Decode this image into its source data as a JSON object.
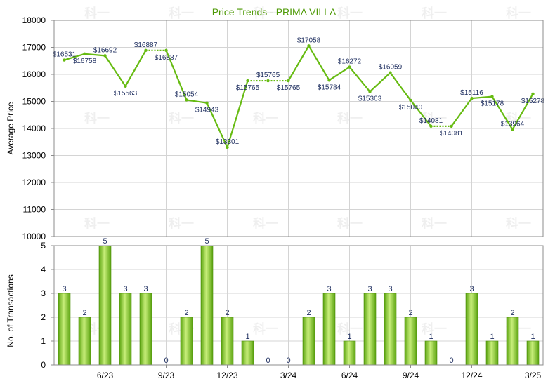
{
  "chart_data": [
    {
      "type": "line",
      "title": "Price Trends - PRIMA VILLA",
      "ylabel": "Average Price",
      "ylim": [
        10000,
        18000
      ],
      "yticks": [
        10000,
        11000,
        12000,
        13000,
        14000,
        15000,
        16000,
        17000,
        18000
      ],
      "grid": true,
      "color": "#66bb11",
      "values": [
        16531,
        16758,
        16692,
        15563,
        16887,
        16887,
        15054,
        14943,
        13301,
        15765,
        15765,
        15765,
        17058,
        15784,
        16272,
        15363,
        16059,
        15040,
        14081,
        14081,
        15116,
        15178,
        13964,
        15278
      ],
      "labels": [
        "$16531",
        "$16758",
        "$16692",
        "$15563",
        "$16887",
        "$16887",
        "$15054",
        "$14943",
        "$13301",
        "$15765",
        "$15765",
        "$15765",
        "$17058",
        "$15784",
        "$16272",
        "$15363",
        "$16059",
        "$15040",
        "$14081",
        "$14081",
        "$15116",
        "$15178",
        "$13964",
        "$15278"
      ],
      "carried_forward": [
        false,
        false,
        false,
        false,
        false,
        true,
        false,
        false,
        false,
        false,
        true,
        true,
        false,
        false,
        false,
        false,
        false,
        false,
        false,
        true,
        false,
        false,
        false,
        false
      ]
    },
    {
      "type": "bar",
      "ylabel": "No. of Transactions",
      "ylim": [
        0,
        5
      ],
      "yticks": [
        0,
        1,
        2,
        3,
        4,
        5
      ],
      "grid": true,
      "color": "#66bb11",
      "values": [
        3,
        2,
        5,
        3,
        3,
        0,
        2,
        5,
        2,
        1,
        0,
        0,
        2,
        3,
        1,
        3,
        3,
        2,
        1,
        0,
        3,
        1,
        2,
        1
      ]
    }
  ],
  "x_tick_labels": [
    "6/23",
    "9/23",
    "12/23",
    "3/24",
    "6/24",
    "9/24",
    "12/24",
    "3/25"
  ],
  "watermark": "科一"
}
